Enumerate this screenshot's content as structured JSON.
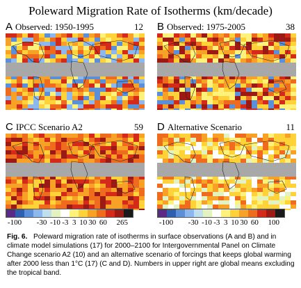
{
  "title": "Poleward Migration Rate of Isotherms (km/decade)",
  "chart_data": [
    {
      "type": "heatmap",
      "panel": "A",
      "title": "Observed: 1950-1995",
      "global_mean": "12"
    },
    {
      "type": "heatmap",
      "panel": "B",
      "title": "Observed: 1975-2005",
      "global_mean": "38"
    },
    {
      "type": "heatmap",
      "panel": "C",
      "title": "IPCC Scenario A2",
      "global_mean": "59"
    },
    {
      "type": "heatmap",
      "panel": "D",
      "title": "Alternative Scenario",
      "global_mean": "11"
    }
  ],
  "legend": {
    "colors": [
      "#5a2a86",
      "#2f5fb0",
      "#5b8fd8",
      "#8cb8ee",
      "#bfe0ea",
      "#e2f2c0",
      "#ffffff",
      "#fff27a",
      "#ffd23a",
      "#f7a227",
      "#ef6b1e",
      "#d42a1a",
      "#9b1b14",
      "#1a1a1a"
    ],
    "tick_labels": [
      "-100",
      "-30",
      "-10",
      "-3",
      "3",
      "10",
      "30",
      "60",
      "265"
    ],
    "tick_labels_right": [
      "-100",
      "-30",
      "-10",
      "-3",
      "3",
      "10",
      "30",
      "60",
      "100"
    ]
  },
  "caption": {
    "label": "Fig. 6.",
    "text": "Poleward migration rate of isotherms in surface observations (A and B) and in climate model simulations (17) for 2000–2100 for Intergovernmental Panel on Climate Change scenario A2 (10) and an alternative scenario of forcings that keeps global warming after 2000 less than 1°C (17) (C and D). Numbers in upper right are global means excluding the tropical band."
  }
}
